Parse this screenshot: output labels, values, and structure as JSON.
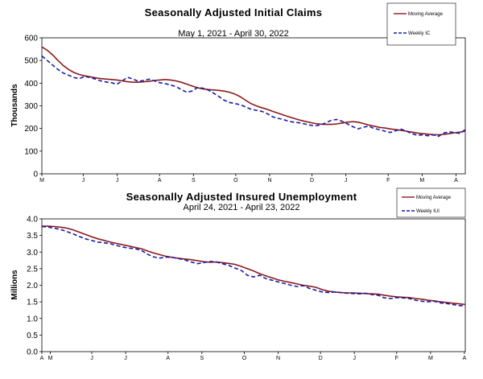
{
  "chart_data": [
    {
      "type": "line",
      "title": "Seasonally Adjusted Initial Claims",
      "subtitle": "May 1, 2021 - April 30, 2022",
      "ylabel": "Thousands",
      "xlabel": "",
      "ylim": [
        0,
        600
      ],
      "yticks": [
        0,
        100,
        200,
        300,
        400,
        500,
        600
      ],
      "x_tick_labels": [
        "M",
        "J",
        "J",
        "A",
        "S",
        "O",
        "N",
        "D",
        "J",
        "F",
        "M",
        "A"
      ],
      "legend": "top-right",
      "grid": false,
      "series": [
        {
          "name": "Moving Average",
          "color": "#8b1a1a",
          "style": "solid",
          "values": [
            560,
            545,
            525,
            500,
            478,
            460,
            447,
            438,
            432,
            428,
            424,
            420,
            418,
            416,
            414,
            410,
            406,
            404,
            404,
            406,
            408,
            412,
            414,
            416,
            414,
            410,
            404,
            396,
            388,
            380,
            375,
            372,
            370,
            368,
            365,
            360,
            352,
            340,
            325,
            310,
            300,
            292,
            285,
            276,
            268,
            260,
            252,
            245,
            238,
            232,
            227,
            222,
            219,
            218,
            218,
            220,
            224,
            228,
            230,
            228,
            222,
            215,
            210,
            205,
            202,
            198,
            195,
            192,
            188,
            184,
            180,
            177,
            175,
            173,
            172,
            174,
            177,
            181,
            184,
            188
          ]
        },
        {
          "name": "Weekly IC",
          "color": "#1a1aa8",
          "style": "dashed",
          "values": [
            520,
            500,
            480,
            460,
            445,
            435,
            425,
            420,
            430,
            425,
            418,
            410,
            405,
            402,
            395,
            410,
            426,
            418,
            408,
            412,
            418,
            410,
            402,
            398,
            392,
            385,
            372,
            360,
            365,
            380,
            378,
            370,
            356,
            342,
            325,
            315,
            310,
            305,
            295,
            285,
            280,
            276,
            266,
            252,
            245,
            240,
            232,
            228,
            225,
            220,
            215,
            212,
            216,
            225,
            236,
            240,
            232,
            220,
            208,
            198,
            206,
            210,
            200,
            195,
            188,
            182,
            190,
            197,
            188,
            178,
            170,
            172,
            168,
            172,
            165,
            180,
            185,
            182,
            178,
            195
          ]
        }
      ]
    },
    {
      "type": "line",
      "title": "Seasonally Adjusted Insured Unemployment",
      "subtitle": "April 24, 2021 - April 23, 2022",
      "ylabel": "Millions",
      "xlabel": "",
      "ylim": [
        0,
        4.0
      ],
      "yticks": [
        0.0,
        0.5,
        1.0,
        1.5,
        2.0,
        2.5,
        3.0,
        3.5,
        4.0
      ],
      "x_tick_labels": [
        "A",
        "M",
        "J",
        "J",
        "A",
        "S",
        "O",
        "N",
        "D",
        "J",
        "F",
        "M",
        "A"
      ],
      "legend": "top-right",
      "grid": false,
      "series": [
        {
          "name": "Moving Average",
          "color": "#8b1a1a",
          "style": "solid",
          "values": [
            3.78,
            3.78,
            3.77,
            3.75,
            3.72,
            3.67,
            3.6,
            3.53,
            3.46,
            3.4,
            3.35,
            3.3,
            3.26,
            3.22,
            3.18,
            3.14,
            3.1,
            3.03,
            2.97,
            2.92,
            2.87,
            2.84,
            2.81,
            2.79,
            2.77,
            2.74,
            2.71,
            2.69,
            2.7,
            2.68,
            2.66,
            2.63,
            2.57,
            2.5,
            2.43,
            2.35,
            2.28,
            2.22,
            2.16,
            2.12,
            2.08,
            2.04,
            2.0,
            1.97,
            1.94,
            1.87,
            1.82,
            1.8,
            1.78,
            1.77,
            1.77,
            1.76,
            1.75,
            1.74,
            1.73,
            1.7,
            1.67,
            1.65,
            1.64,
            1.63,
            1.6,
            1.58,
            1.55,
            1.53,
            1.5,
            1.48,
            1.46,
            1.44,
            1.42
          ]
        },
        {
          "name": "Weekly IUI",
          "color": "#1a1aa8",
          "style": "dashed",
          "values": [
            3.77,
            3.75,
            3.72,
            3.68,
            3.62,
            3.55,
            3.47,
            3.4,
            3.35,
            3.3,
            3.28,
            3.25,
            3.2,
            3.15,
            3.12,
            3.1,
            3.05,
            2.93,
            2.85,
            2.82,
            2.85,
            2.84,
            2.8,
            2.76,
            2.7,
            2.65,
            2.68,
            2.72,
            2.7,
            2.65,
            2.6,
            2.52,
            2.45,
            2.3,
            2.25,
            2.3,
            2.2,
            2.15,
            2.1,
            2.05,
            2.0,
            1.96,
            1.99,
            1.9,
            1.85,
            1.8,
            1.78,
            1.8,
            1.78,
            1.76,
            1.75,
            1.74,
            1.76,
            1.72,
            1.7,
            1.62,
            1.6,
            1.63,
            1.62,
            1.6,
            1.55,
            1.52,
            1.5,
            1.52,
            1.47,
            1.45,
            1.42,
            1.39,
            1.38
          ]
        }
      ]
    }
  ]
}
